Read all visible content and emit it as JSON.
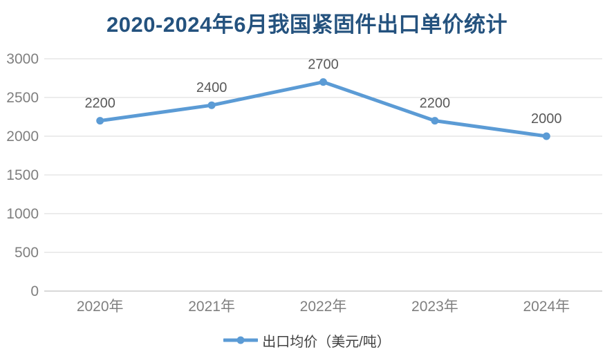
{
  "colors": {
    "series": "#5B9BD5",
    "gridline": "#D9D9D9",
    "axis_line": "#CCCCCC",
    "title": "#24527E",
    "tick": "#7F7F7F",
    "data_label": "#595959",
    "legend_text": "#404040",
    "background": "#FFFFFF"
  },
  "chart_data": {
    "type": "line",
    "title": "2020-2024年6月我国紧固件出口单价统计",
    "categories": [
      "2020年",
      "2021年",
      "2022年",
      "2023年",
      "2024年"
    ],
    "series": [
      {
        "name": "出口均价（美元/吨）",
        "values": [
          2200,
          2400,
          2700,
          2200,
          2000
        ]
      }
    ],
    "data_labels": [
      "2200",
      "2400",
      "2700",
      "2200",
      "2000"
    ],
    "ytick_labels": [
      "0",
      "500",
      "1000",
      "1500",
      "2000",
      "2500",
      "3000"
    ],
    "ylim": [
      0,
      3000
    ],
    "ytick_step": 500,
    "xlabel": "",
    "ylabel": "",
    "grid": true,
    "legend_position": "bottom",
    "marker": "circle"
  }
}
